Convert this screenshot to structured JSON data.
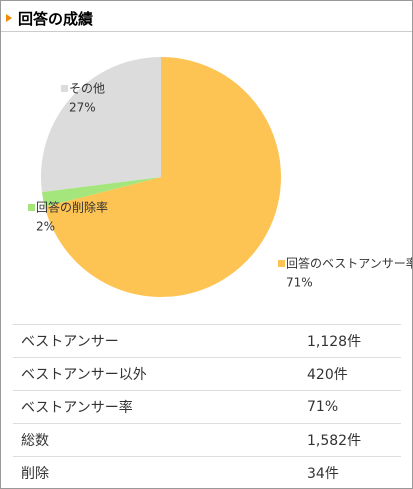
{
  "header": {
    "title": "回答の成績"
  },
  "chart_data": {
    "type": "pie",
    "categories": [
      "回答のベストアンサー率",
      "回答の削除率",
      "その他"
    ],
    "values": [
      71,
      2,
      27
    ],
    "value_labels": [
      "71%",
      "2%",
      "27%"
    ],
    "colors": [
      "#fdc454",
      "#a4e67c",
      "#dcdcdc"
    ]
  },
  "table": {
    "rows": [
      [
        "ベストアンサー",
        "1,128件"
      ],
      [
        "ベストアンサー以外",
        "420件"
      ],
      [
        "ベストアンサー率",
        "71%"
      ],
      [
        "総数",
        "1,582件"
      ],
      [
        "削除",
        "34件"
      ]
    ]
  }
}
